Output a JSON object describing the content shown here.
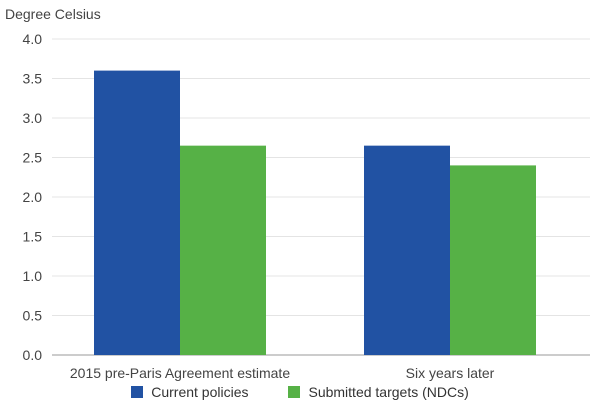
{
  "chart_data": {
    "type": "bar",
    "title": "",
    "ylabel": "Degree Celsius",
    "xlabel": "",
    "categories": [
      "2015 pre-Paris Agreement estimate",
      "Six years later"
    ],
    "series": [
      {
        "name": "Current policies",
        "color": "#2152a3",
        "values": [
          3.6,
          2.65
        ]
      },
      {
        "name": "Submitted targets (NDCs)",
        "color": "#56b146",
        "values": [
          2.65,
          2.4
        ]
      }
    ],
    "ylim": [
      0,
      4.0
    ],
    "yticks": [
      "0.0",
      "0.5",
      "1.0",
      "1.5",
      "2.0",
      "2.5",
      "3.0",
      "3.5",
      "4.0"
    ],
    "grid": true,
    "legend_position": "bottom"
  }
}
